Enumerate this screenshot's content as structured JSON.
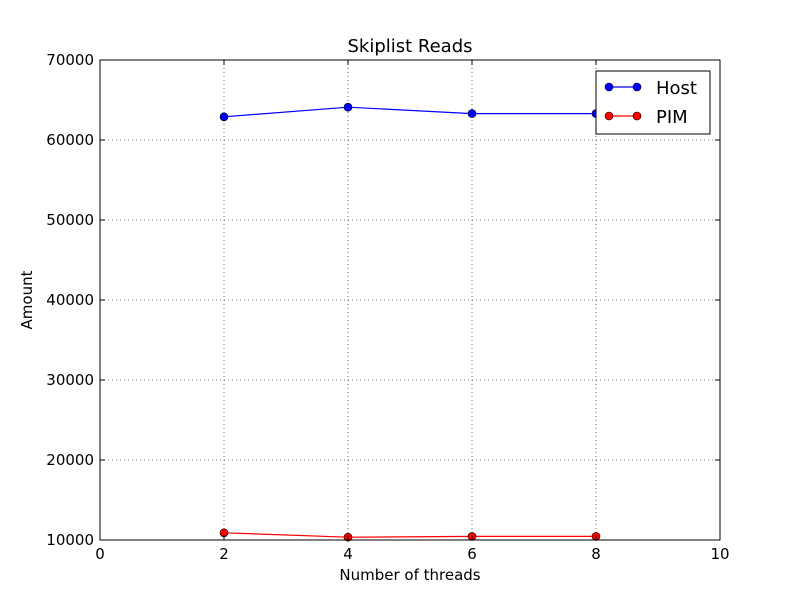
{
  "chart_data": {
    "type": "line",
    "title": "Skiplist Reads",
    "xlabel": "Number of threads",
    "ylabel": "Amount",
    "xlim": [
      0,
      10
    ],
    "ylim": [
      10000,
      70000
    ],
    "xticks": [
      0,
      2,
      4,
      6,
      8,
      10
    ],
    "yticks": [
      10000,
      20000,
      30000,
      40000,
      50000,
      60000,
      70000
    ],
    "grid": true,
    "legend_position": "top-right",
    "series": [
      {
        "name": "Host",
        "color": "#0000ff",
        "marker": "circle",
        "x": [
          2,
          4,
          6,
          8
        ],
        "y": [
          62900,
          64100,
          63300,
          63300
        ]
      },
      {
        "name": "PIM",
        "color": "#ff0000",
        "marker": "circle",
        "x": [
          2,
          4,
          6,
          8
        ],
        "y": [
          10900,
          10350,
          10450,
          10450
        ]
      }
    ]
  }
}
